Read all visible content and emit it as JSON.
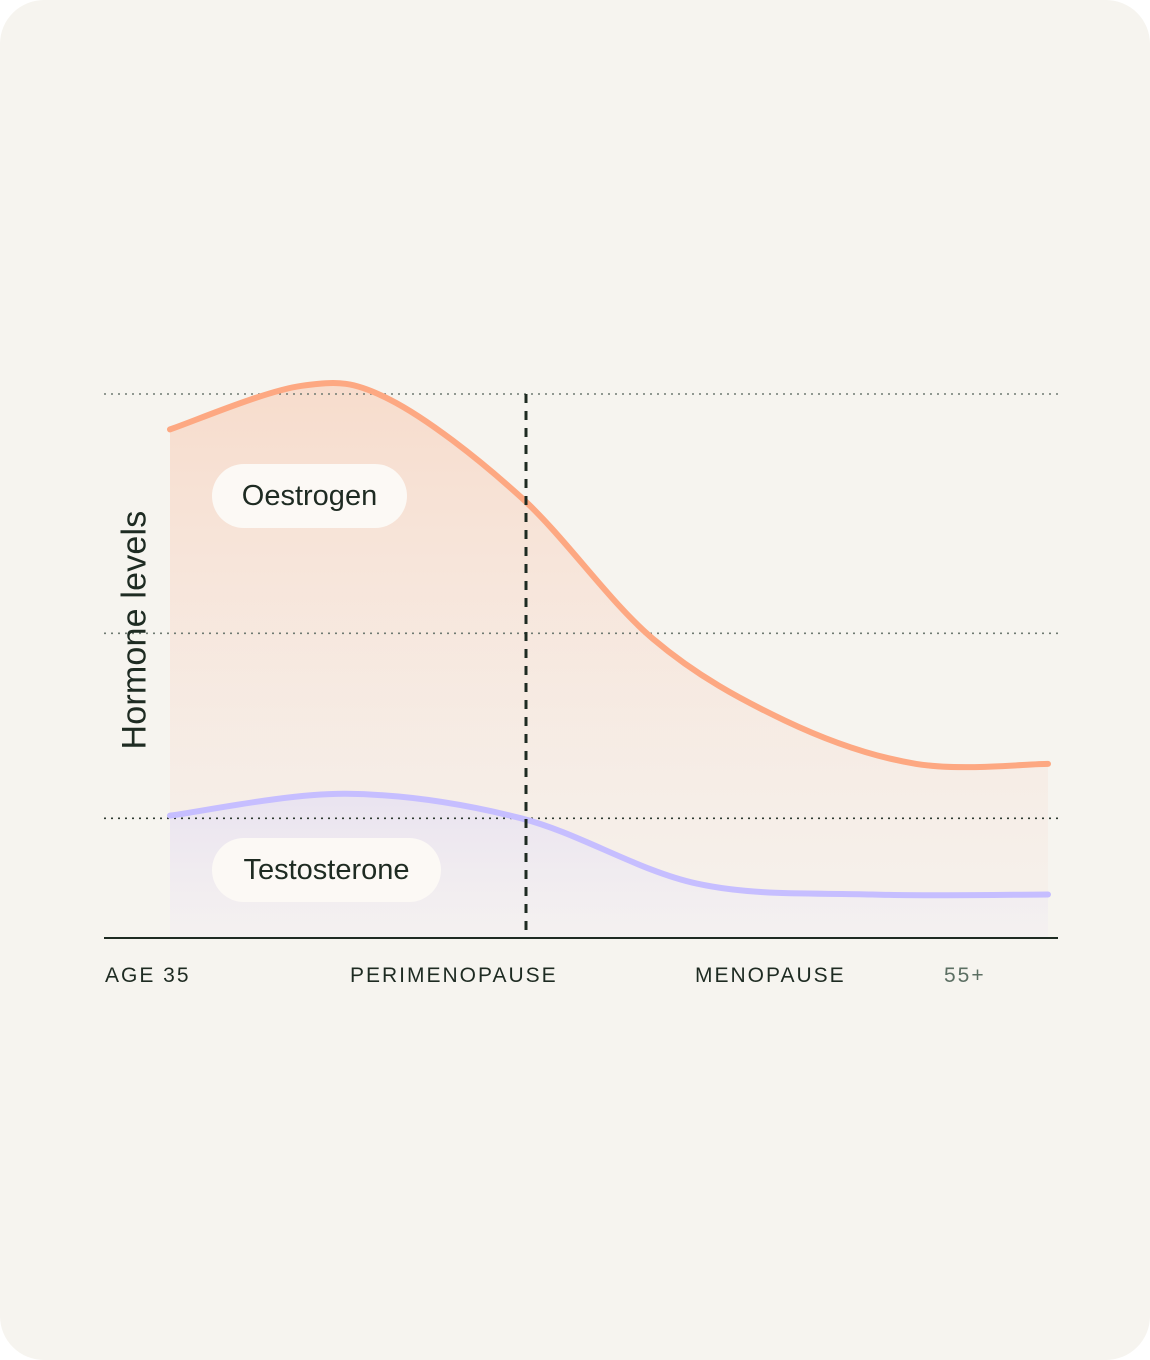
{
  "chart_data": {
    "type": "area",
    "ylabel": "Hormone levels",
    "x_ticks": [
      "AGE 35",
      "PERIMENOPAUSE",
      "MENOPAUSE",
      "55+"
    ],
    "ylim": [
      0,
      100
    ],
    "gridlines_y": [
      100,
      56,
      22
    ],
    "divider_at": "PERIMENOPAUSE",
    "series": [
      {
        "name": "Oestrogen",
        "color": "#fda882",
        "fill_color": "#f8dccd",
        "points": [
          [
            0,
            93.5
          ],
          [
            0.15,
            101.5
          ],
          [
            0.25,
            99
          ],
          [
            0.4,
            81
          ],
          [
            0.55,
            55
          ],
          [
            0.7,
            40
          ],
          [
            0.85,
            32
          ],
          [
            1,
            32
          ]
        ]
      },
      {
        "name": "Testosterone",
        "color": "#c6beff",
        "fill_color": "#e6e0f4",
        "points": [
          [
            0,
            22.5
          ],
          [
            0.2,
            26.5
          ],
          [
            0.4,
            22
          ],
          [
            0.6,
            10
          ],
          [
            0.8,
            8
          ],
          [
            1,
            8
          ]
        ]
      }
    ]
  }
}
